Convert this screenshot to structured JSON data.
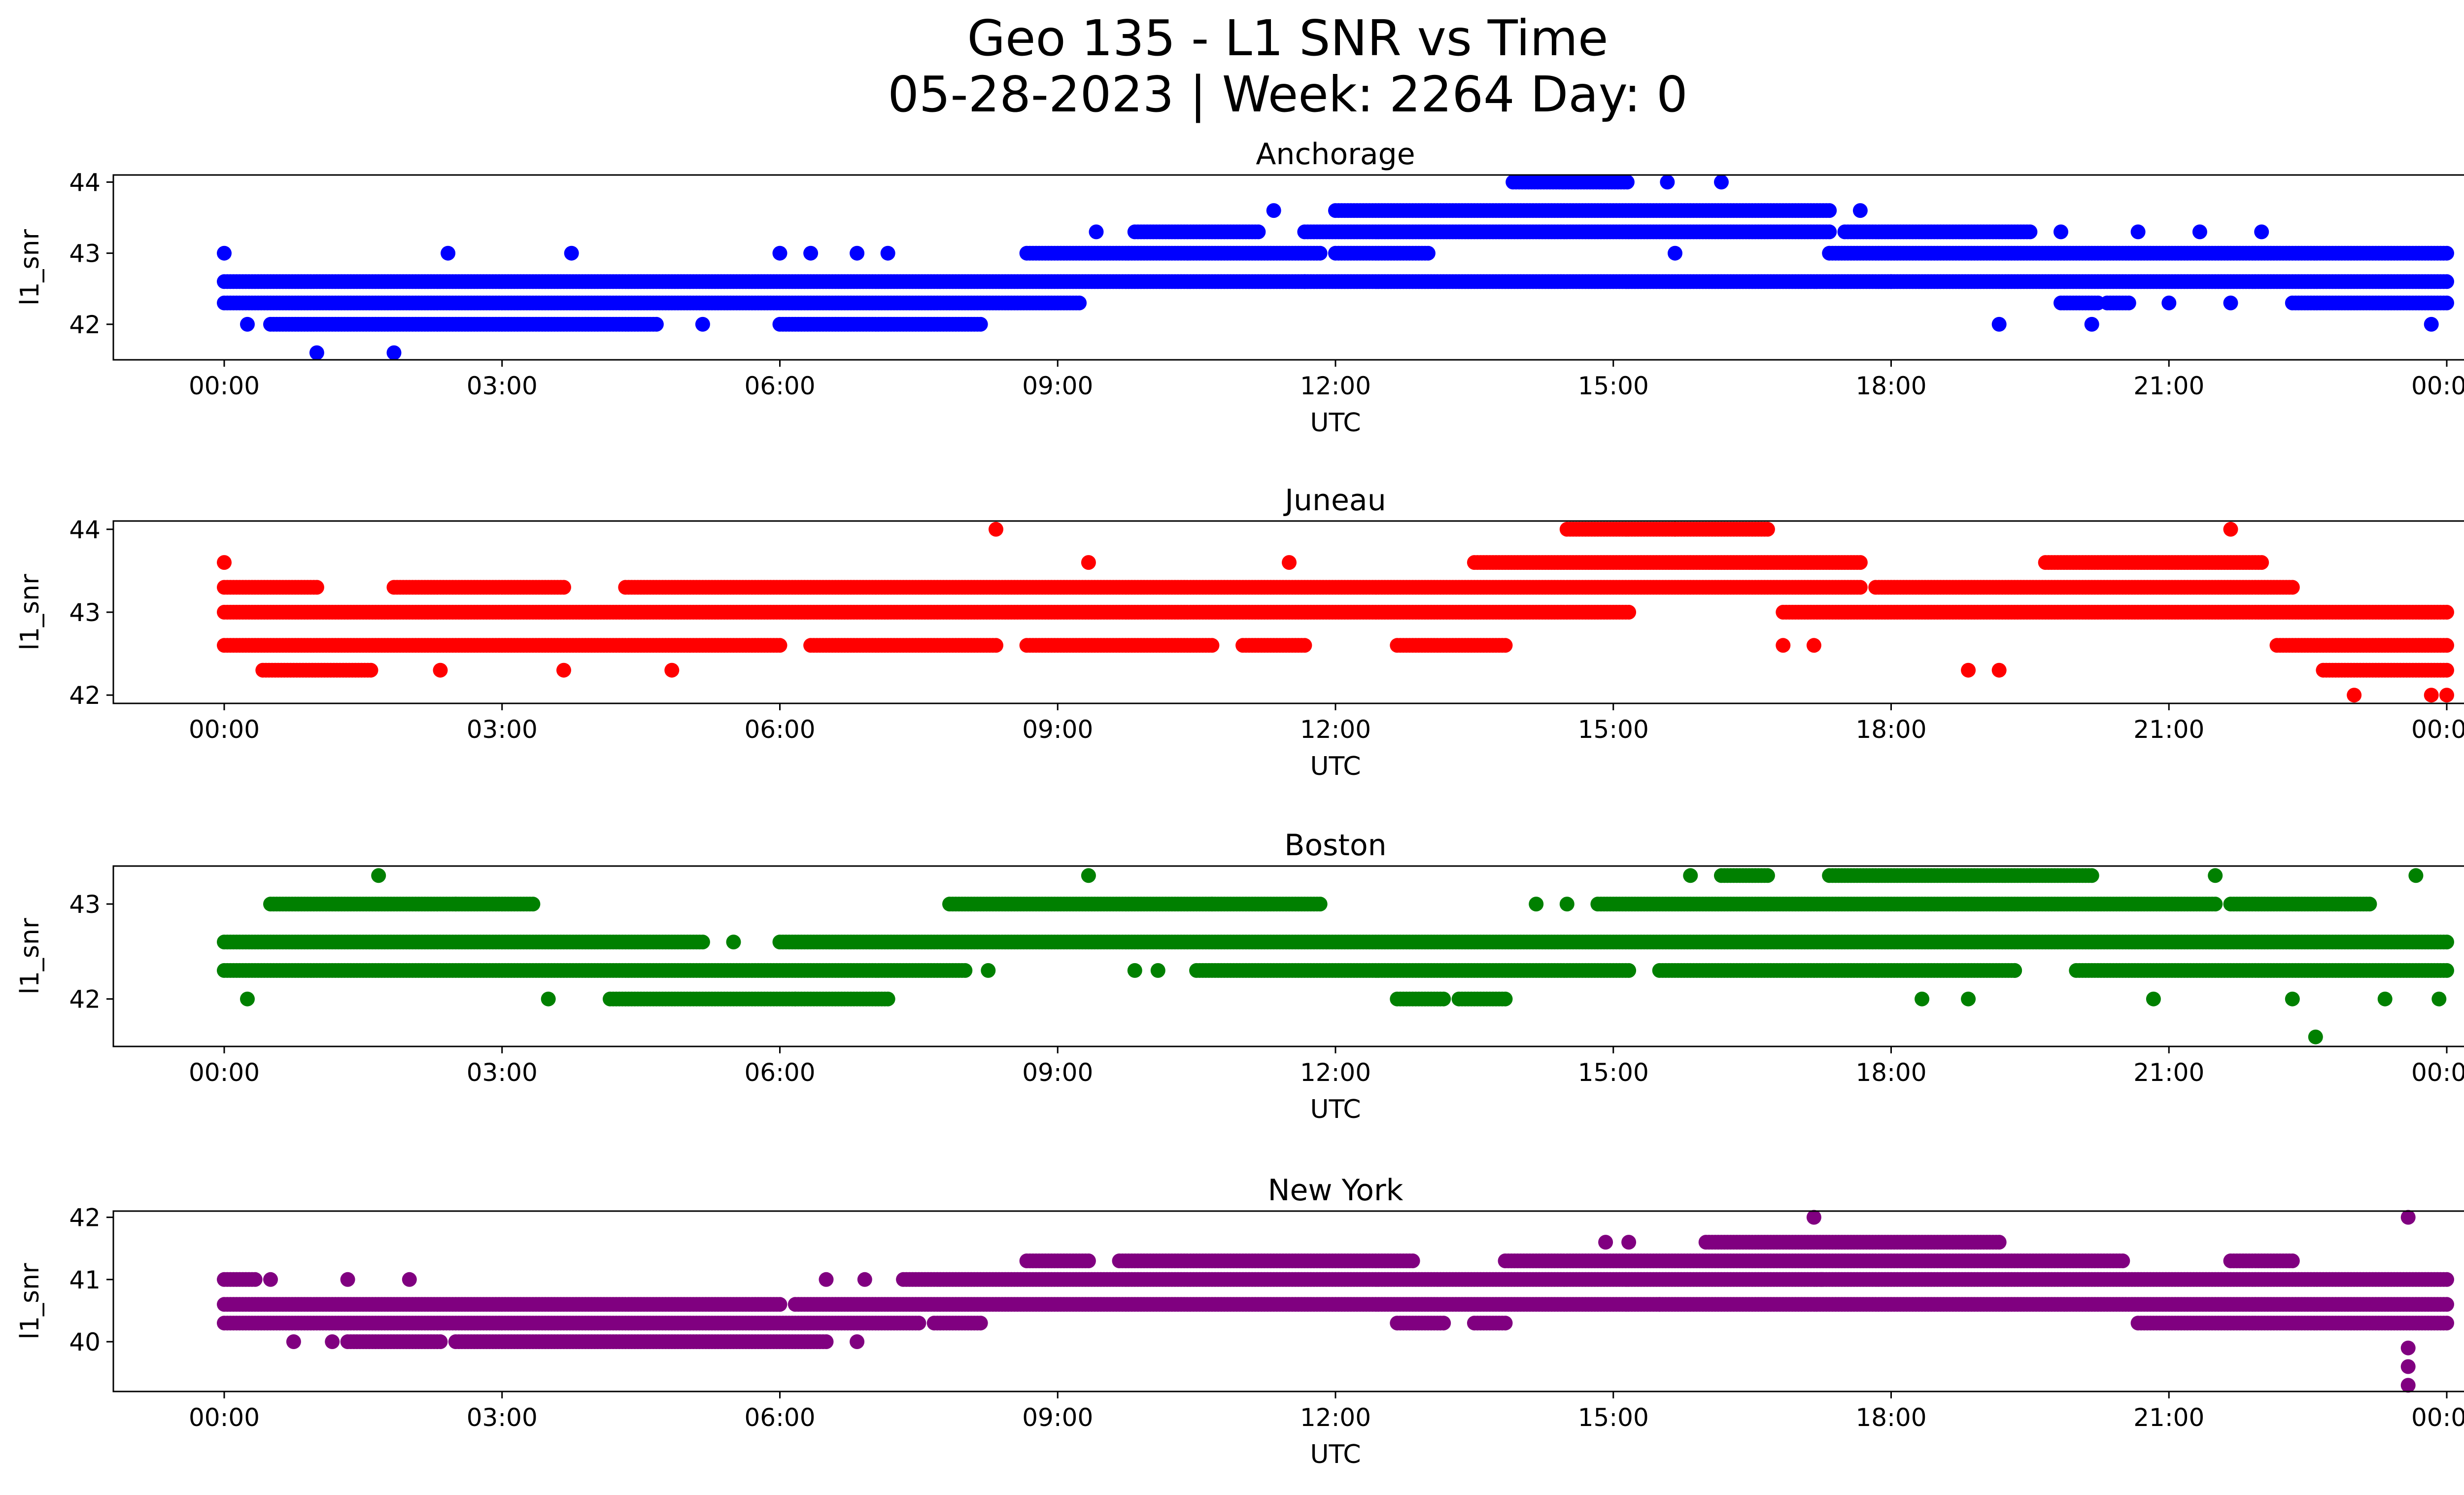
{
  "figure": {
    "title_line1": "Geo 135 - L1 SNR vs Time",
    "title_line2": "05-28-2023 | Week: 2264 Day: 0"
  },
  "chart_data": [
    {
      "type": "scatter",
      "title": "Anchorage",
      "xlabel": "UTC",
      "ylabel": "l1_snr",
      "color": "#0000ff",
      "xlim": [
        "00:00",
        "24:00"
      ],
      "ylim": [
        41.5,
        44.1
      ],
      "xticks": [
        "00:00",
        "03:00",
        "06:00",
        "09:00",
        "12:00",
        "15:00",
        "18:00",
        "21:00",
        "00:00"
      ],
      "yticks": [
        42,
        43,
        44
      ],
      "grid": false,
      "bands": [
        {
          "y": 42.6,
          "ranges": [
            [
              "00:00",
              "24:00"
            ]
          ]
        },
        {
          "y": 42.3,
          "ranges": [
            [
              "00:00",
              "09:15"
            ],
            [
              "19:50",
              "20:15"
            ],
            [
              "20:20",
              "20:35"
            ],
            [
              "22:20",
              "24:00"
            ]
          ]
        },
        {
          "y": 42.0,
          "ranges": [
            [
              "00:30",
              "04:40"
            ],
            [
              "06:00",
              "08:10"
            ]
          ]
        },
        {
          "y": 43.0,
          "ranges": [
            [
              "08:40",
              "11:50"
            ],
            [
              "12:00",
              "13:00"
            ],
            [
              "17:20",
              "24:00"
            ]
          ]
        },
        {
          "y": 43.3,
          "ranges": [
            [
              "09:50",
              "11:10"
            ],
            [
              "11:40",
              "17:20"
            ],
            [
              "17:30",
              "19:30"
            ]
          ]
        },
        {
          "y": 43.6,
          "ranges": [
            [
              "12:00",
              "17:20"
            ]
          ]
        },
        {
          "y": 44.0,
          "ranges": [
            [
              "13:55",
              "15:10"
            ]
          ]
        }
      ],
      "points": [
        [
          "00:00",
          43.0
        ],
        [
          "00:15",
          42.0
        ],
        [
          "01:00",
          41.6
        ],
        [
          "01:50",
          41.6
        ],
        [
          "02:25",
          43.0
        ],
        [
          "03:45",
          43.0
        ],
        [
          "05:10",
          42.0
        ],
        [
          "06:00",
          43.0
        ],
        [
          "06:20",
          43.0
        ],
        [
          "06:50",
          43.0
        ],
        [
          "07:10",
          43.0
        ],
        [
          "09:25",
          43.3
        ],
        [
          "11:20",
          43.6
        ],
        [
          "11:40",
          42.6
        ],
        [
          "15:35",
          44.0
        ],
        [
          "15:40",
          43.0
        ],
        [
          "16:10",
          44.0
        ],
        [
          "17:40",
          43.6
        ],
        [
          "18:00",
          42.6
        ],
        [
          "19:10",
          42.0
        ],
        [
          "19:50",
          43.3
        ],
        [
          "20:10",
          42.0
        ],
        [
          "20:40",
          43.3
        ],
        [
          "21:00",
          42.3
        ],
        [
          "21:20",
          43.3
        ],
        [
          "21:40",
          42.3
        ],
        [
          "22:00",
          43.3
        ],
        [
          "23:50",
          42.0
        ]
      ]
    },
    {
      "type": "scatter",
      "title": "Juneau",
      "xlabel": "UTC",
      "ylabel": "l1_snr",
      "color": "#ff0000",
      "xlim": [
        "00:00",
        "24:00"
      ],
      "ylim": [
        41.9,
        44.1
      ],
      "xticks": [
        "00:00",
        "03:00",
        "06:00",
        "09:00",
        "12:00",
        "15:00",
        "18:00",
        "21:00",
        "00:00"
      ],
      "yticks": [
        42,
        43,
        44
      ],
      "grid": false,
      "bands": [
        {
          "y": 42.6,
          "ranges": [
            [
              "00:00",
              "06:00"
            ],
            [
              "06:20",
              "08:20"
            ],
            [
              "08:40",
              "10:40"
            ],
            [
              "11:00",
              "11:40"
            ],
            [
              "12:40",
              "13:50"
            ],
            [
              "22:10",
              "24:00"
            ]
          ]
        },
        {
          "y": 43.0,
          "ranges": [
            [
              "00:00",
              "15:10"
            ],
            [
              "16:50",
              "24:00"
            ]
          ]
        },
        {
          "y": 43.3,
          "ranges": [
            [
              "00:00",
              "01:00"
            ],
            [
              "01:50",
              "03:40"
            ],
            [
              "04:20",
              "17:40"
            ],
            [
              "17:50",
              "22:20"
            ]
          ]
        },
        {
          "y": 42.3,
          "ranges": [
            [
              "00:25",
              "01:35"
            ],
            [
              "22:40",
              "24:00"
            ]
          ]
        },
        {
          "y": 43.6,
          "ranges": [
            [
              "13:30",
              "17:40"
            ],
            [
              "19:40",
              "22:00"
            ]
          ]
        },
        {
          "y": 44.0,
          "ranges": [
            [
              "14:30",
              "15:40"
            ],
            [
              "15:40",
              "16:40"
            ]
          ]
        }
      ],
      "points": [
        [
          "00:00",
          43.6
        ],
        [
          "02:20",
          42.3
        ],
        [
          "03:40",
          42.3
        ],
        [
          "04:50",
          42.3
        ],
        [
          "08:20",
          44.0
        ],
        [
          "09:20",
          43.6
        ],
        [
          "11:30",
          43.6
        ],
        [
          "16:50",
          42.6
        ],
        [
          "17:10",
          42.6
        ],
        [
          "18:50",
          42.3
        ],
        [
          "19:10",
          42.3
        ],
        [
          "21:40",
          44.0
        ],
        [
          "23:00",
          42.0
        ],
        [
          "23:50",
          42.0
        ],
        [
          "24:00",
          42.0
        ]
      ]
    },
    {
      "type": "scatter",
      "title": "Boston",
      "xlabel": "UTC",
      "ylabel": "l1_snr",
      "color": "#008000",
      "xlim": [
        "00:00",
        "24:00"
      ],
      "ylim": [
        41.5,
        43.4
      ],
      "xticks": [
        "00:00",
        "03:00",
        "06:00",
        "09:00",
        "12:00",
        "15:00",
        "18:00",
        "21:00",
        "00:00"
      ],
      "yticks": [
        42,
        43
      ],
      "grid": false,
      "bands": [
        {
          "y": 42.6,
          "ranges": [
            [
              "00:00",
              "05:10"
            ],
            [
              "06:00",
              "24:00"
            ]
          ]
        },
        {
          "y": 42.3,
          "ranges": [
            [
              "00:00",
              "08:00"
            ],
            [
              "10:30",
              "15:10"
            ],
            [
              "15:30",
              "19:20"
            ],
            [
              "20:00",
              "24:00"
            ]
          ]
        },
        {
          "y": 43.0,
          "ranges": [
            [
              "00:30",
              "02:30"
            ],
            [
              "02:30",
              "03:20"
            ],
            [
              "07:50",
              "10:40"
            ],
            [
              "10:40",
              "11:50"
            ],
            [
              "14:50",
              "21:30"
            ],
            [
              "21:40",
              "23:10"
            ]
          ]
        },
        {
          "y": 42.0,
          "ranges": [
            [
              "04:10",
              "06:10"
            ],
            [
              "06:10",
              "07:10"
            ],
            [
              "12:40",
              "13:10"
            ],
            [
              "13:20",
              "13:50"
            ]
          ]
        },
        {
          "y": 43.3,
          "ranges": [
            [
              "16:10",
              "16:40"
            ],
            [
              "17:20",
              "19:30"
            ],
            [
              "19:30",
              "20:10"
            ]
          ]
        }
      ],
      "points": [
        [
          "00:15",
          42.0
        ],
        [
          "01:40",
          43.3
        ],
        [
          "03:30",
          42.0
        ],
        [
          "05:30",
          42.6
        ],
        [
          "08:15",
          42.3
        ],
        [
          "09:20",
          43.3
        ],
        [
          "09:50",
          42.3
        ],
        [
          "10:05",
          42.3
        ],
        [
          "14:10",
          43.0
        ],
        [
          "14:30",
          43.0
        ],
        [
          "15:50",
          43.3
        ],
        [
          "18:20",
          42.0
        ],
        [
          "18:50",
          42.0
        ],
        [
          "19:20",
          42.3
        ],
        [
          "20:50",
          42.0
        ],
        [
          "21:30",
          43.3
        ],
        [
          "22:20",
          42.0
        ],
        [
          "22:35",
          41.6
        ],
        [
          "23:20",
          42.0
        ],
        [
          "23:40",
          43.3
        ],
        [
          "23:55",
          42.0
        ]
      ]
    },
    {
      "type": "scatter",
      "title": "New York",
      "xlabel": "UTC",
      "ylabel": "l1_snr",
      "color": "#800080",
      "xlim": [
        "00:00",
        "24:00"
      ],
      "ylim": [
        39.2,
        42.1
      ],
      "xticks": [
        "00:00",
        "03:00",
        "06:00",
        "09:00",
        "12:00",
        "15:00",
        "18:00",
        "21:00",
        "00:00"
      ],
      "yticks": [
        40,
        41,
        42
      ],
      "grid": false,
      "bands": [
        {
          "y": 40.6,
          "ranges": [
            [
              "00:00",
              "06:00"
            ],
            [
              "06:10",
              "24:00"
            ]
          ]
        },
        {
          "y": 40.3,
          "ranges": [
            [
              "00:00",
              "07:30"
            ],
            [
              "07:40",
              "08:10"
            ],
            [
              "12:40",
              "13:10"
            ],
            [
              "13:30",
              "13:50"
            ],
            [
              "20:40",
              "24:00"
            ]
          ]
        },
        {
          "y": 40.0,
          "ranges": [
            [
              "01:20",
              "02:20"
            ],
            [
              "02:30",
              "06:30"
            ]
          ]
        },
        {
          "y": 41.0,
          "ranges": [
            [
              "00:00",
              "00:20"
            ],
            [
              "07:20",
              "24:00"
            ]
          ]
        },
        {
          "y": 41.3,
          "ranges": [
            [
              "08:40",
              "09:20"
            ],
            [
              "09:40",
              "12:50"
            ],
            [
              "13:50",
              "20:30"
            ],
            [
              "21:40",
              "22:20"
            ]
          ]
        },
        {
          "y": 41.6,
          "ranges": [
            [
              "16:00",
              "19:10"
            ]
          ]
        }
      ],
      "points": [
        [
          "00:30",
          41.0
        ],
        [
          "00:45",
          40.0
        ],
        [
          "01:10",
          40.0
        ],
        [
          "01:20",
          41.0
        ],
        [
          "02:00",
          41.0
        ],
        [
          "06:50",
          40.0
        ],
        [
          "06:30",
          41.0
        ],
        [
          "06:55",
          41.0
        ],
        [
          "14:55",
          41.6
        ],
        [
          "15:10",
          41.6
        ],
        [
          "15:30",
          40.6
        ],
        [
          "17:10",
          42.0
        ],
        [
          "17:15",
          41.0
        ],
        [
          "23:35",
          42.0
        ],
        [
          "23:35",
          39.9
        ],
        [
          "23:35",
          39.6
        ],
        [
          "23:35",
          39.3
        ]
      ]
    }
  ]
}
